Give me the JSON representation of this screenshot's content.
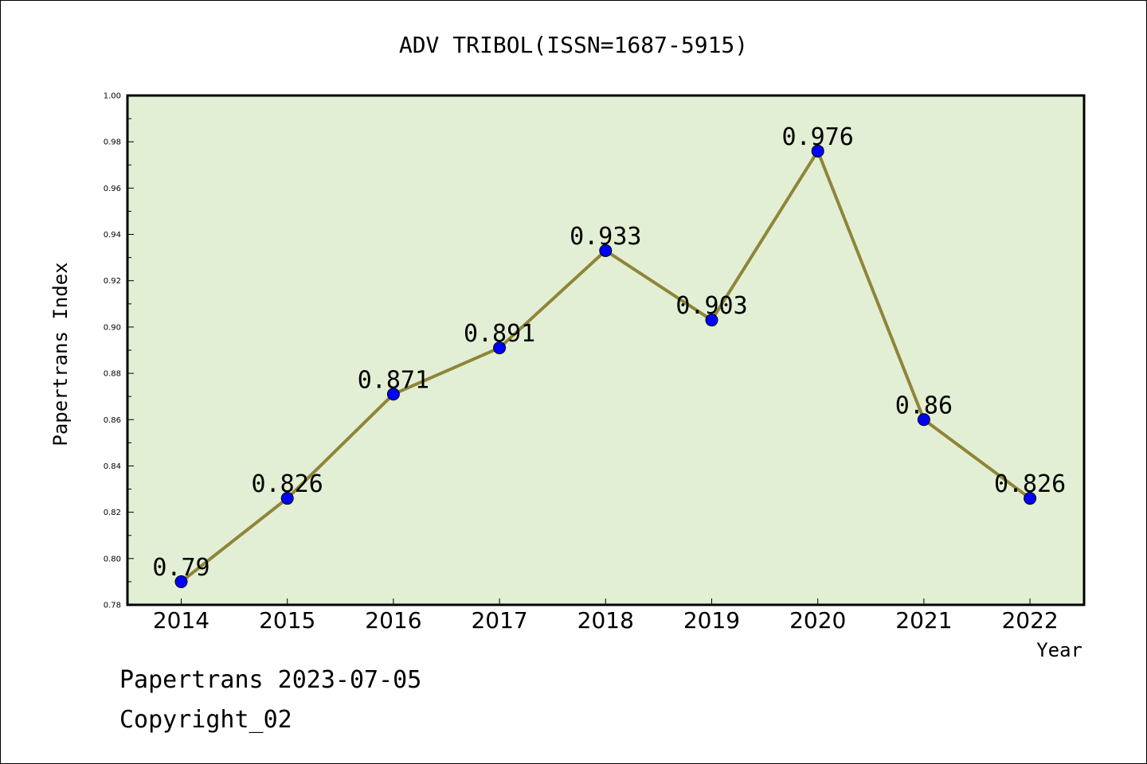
{
  "chart_data": {
    "type": "line",
    "title": "ADV TRIBOL(ISSN=1687-5915)",
    "xlabel": "Year",
    "ylabel": "Papertrans Index",
    "categories": [
      "2014",
      "2015",
      "2016",
      "2017",
      "2018",
      "2019",
      "2020",
      "2021",
      "2022"
    ],
    "series": [
      {
        "values": [
          0.79,
          0.826,
          0.871,
          0.891,
          0.933,
          0.903,
          0.976,
          0.86,
          0.826
        ],
        "labels": [
          "0.79",
          "0.826",
          "0.871",
          "0.891",
          "0.933",
          "0.903",
          "0.976",
          "0.86",
          "0.826"
        ]
      }
    ],
    "ylim": [
      0.78,
      1.0
    ],
    "yticks": [
      "0.78",
      "0.80",
      "0.82",
      "0.84",
      "0.86",
      "0.88",
      "0.90",
      "0.92",
      "0.94",
      "0.96",
      "0.98",
      "1.00"
    ],
    "grid": false,
    "colors": {
      "plot_background": "#e2efd4",
      "line": "#8f8539",
      "marker": "#0000ff"
    }
  },
  "footer": {
    "line1": "Papertrans 2023-07-05",
    "line2": "Copyright_02"
  }
}
